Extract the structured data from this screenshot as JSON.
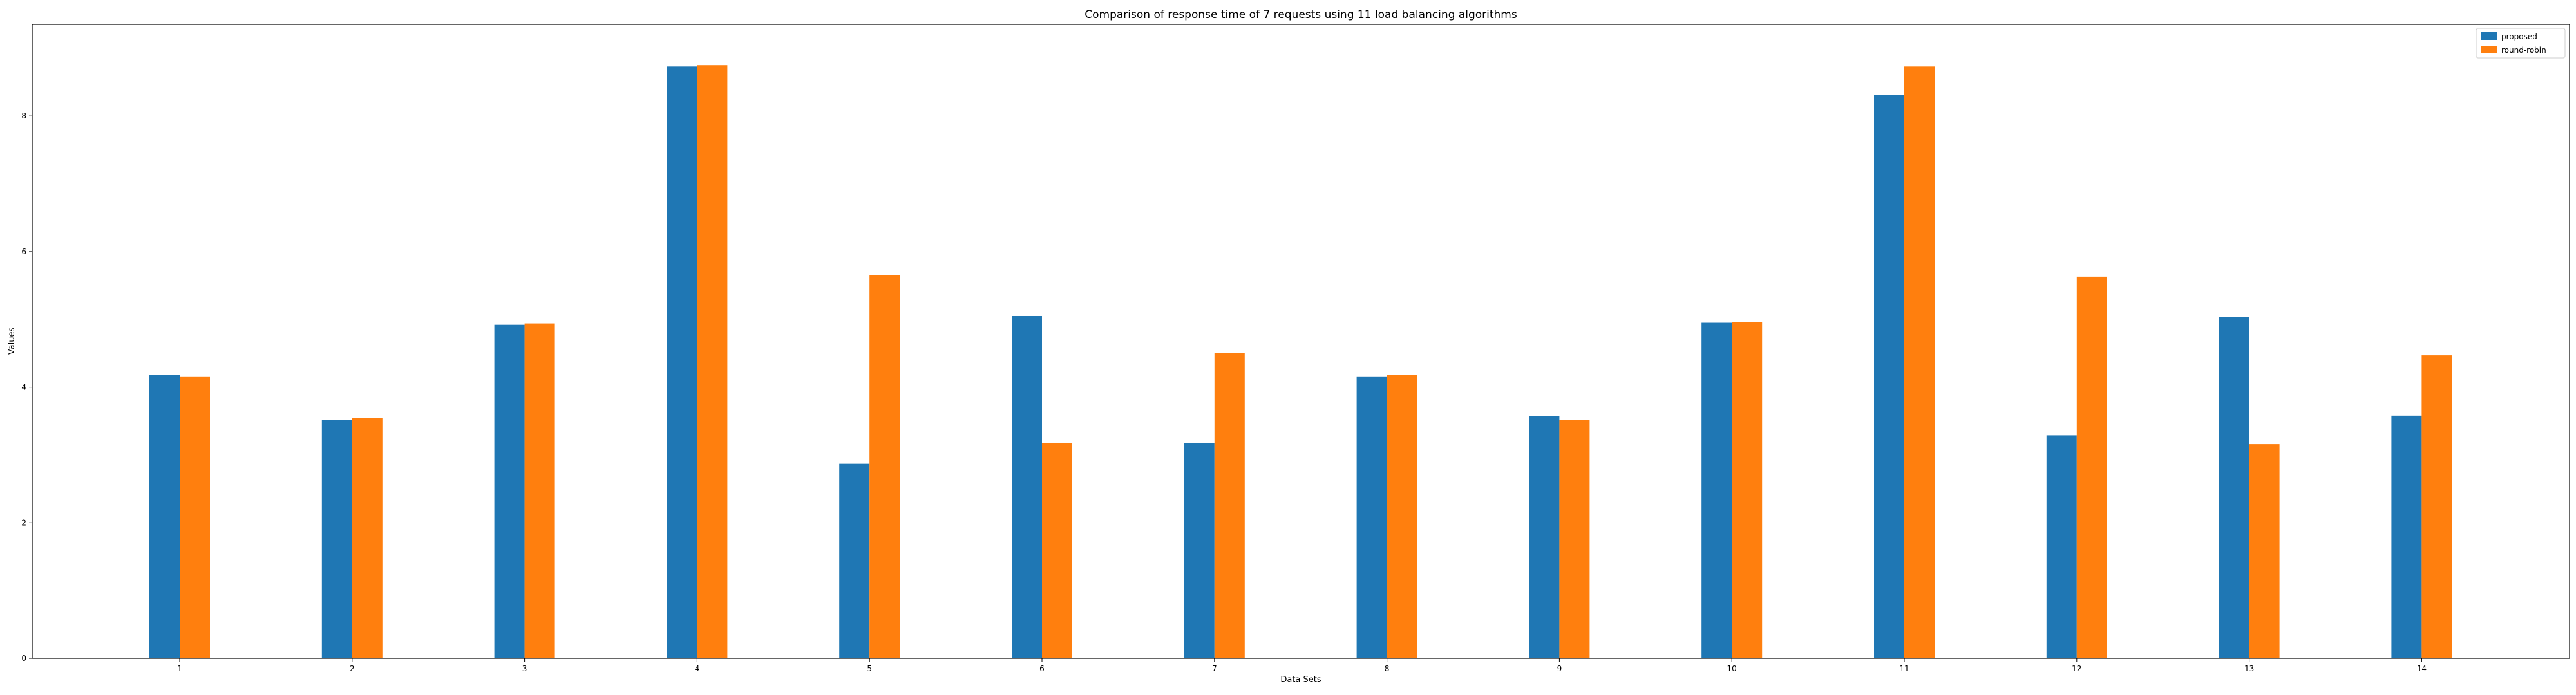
{
  "colors": {
    "proposed": "#1f77b4",
    "round_robin": "#ff7f0e",
    "axes": "#000000",
    "background": "#ffffff"
  },
  "chart_data": {
    "type": "bar",
    "title": "Comparison of response time of 7 requests using 11 load balancing algorithms",
    "xlabel": "Data Sets",
    "ylabel": "Values",
    "categories": [
      "1",
      "2",
      "3",
      "4",
      "5",
      "6",
      "7",
      "8",
      "9",
      "10",
      "11",
      "12",
      "13",
      "14"
    ],
    "series": [
      {
        "name": "proposed",
        "color": "#1f77b4",
        "values": [
          4.18,
          3.52,
          4.92,
          8.73,
          2.87,
          5.05,
          3.18,
          4.15,
          3.57,
          4.95,
          8.31,
          3.29,
          5.04,
          3.58
        ]
      },
      {
        "name": "round-robin",
        "color": "#ff7f0e",
        "values": [
          4.15,
          3.55,
          4.94,
          8.75,
          5.65,
          3.18,
          4.5,
          4.18,
          3.52,
          4.96,
          8.73,
          5.63,
          3.16,
          4.47
        ]
      }
    ],
    "ylim": [
      0,
      9.35
    ],
    "yticks": [
      "0",
      "2",
      "4",
      "6",
      "8"
    ],
    "grid": false,
    "legend_position": "top-right"
  }
}
